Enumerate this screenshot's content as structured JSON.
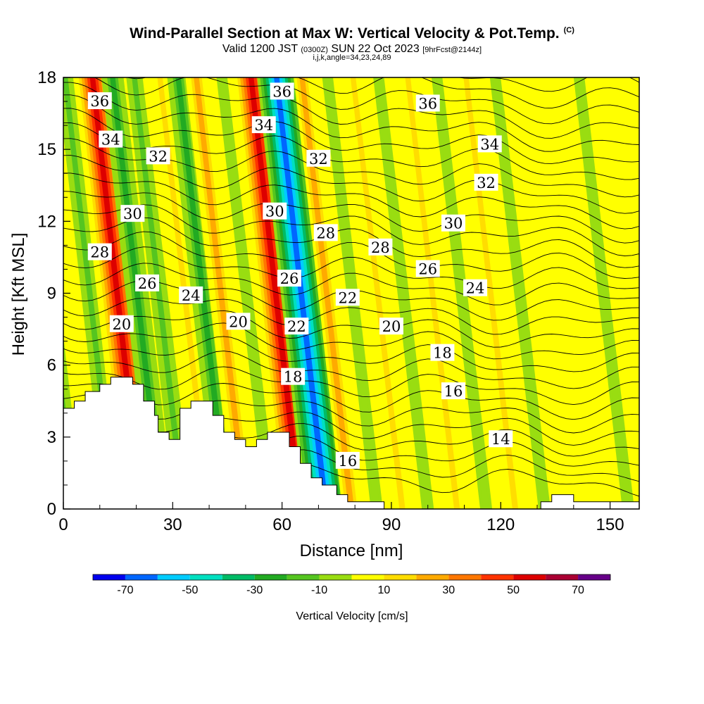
{
  "header": {
    "title": "Wind-Parallel Section at Max W: Vertical Velocity & Pot.Temp.",
    "copyright": "(C)",
    "valid_prefix": "Valid 1200 JST",
    "valid_z": "(0300Z)",
    "valid_date": "SUN 22 Oct 2023",
    "valid_fcst": "[9hrFcst@2144z]",
    "indices": "i,j,k,angle=34,23,24,89"
  },
  "chart_data": {
    "type": "heatmap",
    "title": "Wind-Parallel Section at Max W: Vertical Velocity & Pot.Temp.",
    "xlabel": "Distance [nm]",
    "ylabel": "Height [Kft MSL]",
    "xlim": [
      0,
      158
    ],
    "ylim": [
      0,
      18
    ],
    "x_ticks": [
      0,
      30,
      60,
      90,
      120,
      150
    ],
    "y_ticks": [
      0,
      3,
      6,
      9,
      12,
      15,
      18
    ],
    "colorbar": {
      "label": "Vertical Velocity [cm/s]",
      "ticks": [
        -70,
        -50,
        -30,
        -10,
        10,
        30,
        50,
        70
      ],
      "bounds": [
        -80,
        -70,
        -60,
        -50,
        -40,
        -30,
        -20,
        -10,
        0,
        10,
        20,
        30,
        40,
        50,
        60,
        70,
        80
      ],
      "colors": [
        "#0000ee",
        "#0066ff",
        "#00ccff",
        "#00e0c0",
        "#00bb66",
        "#22aa22",
        "#55c520",
        "#99dd11",
        "#ffff00",
        "#ffdd00",
        "#ffaa00",
        "#ff7700",
        "#ff3300",
        "#dd0000",
        "#aa0033",
        "#660088"
      ]
    },
    "stripes": [
      {
        "x": 3,
        "w": -20
      },
      {
        "x": 9,
        "w": 5
      },
      {
        "x": 14,
        "w": -15
      },
      {
        "x": 21.5,
        "w": 55
      },
      {
        "x": 27,
        "w": -30
      },
      {
        "x": 33,
        "w": -12
      },
      {
        "x": 40,
        "w": 10
      },
      {
        "x": 45,
        "w": -25
      },
      {
        "x": 50,
        "w": 25
      },
      {
        "x": 57,
        "w": -10
      },
      {
        "x": 65,
        "w": 55
      },
      {
        "x": 72,
        "w": -65
      },
      {
        "x": 79,
        "w": 20
      },
      {
        "x": 86,
        "w": -10
      },
      {
        "x": 93,
        "w": 15
      },
      {
        "x": 100,
        "w": -5
      },
      {
        "x": 108,
        "w": 10
      },
      {
        "x": 116,
        "w": -8
      },
      {
        "x": 124,
        "w": 12
      },
      {
        "x": 132,
        "w": -5
      },
      {
        "x": 140,
        "w": 8
      },
      {
        "x": 148,
        "w": 5
      },
      {
        "x": 155,
        "w": -8
      }
    ],
    "theta_labels": [
      {
        "v": "36",
        "x": 10,
        "y": 17.0
      },
      {
        "v": "36",
        "x": 60,
        "y": 17.4
      },
      {
        "v": "36",
        "x": 100,
        "y": 16.9
      },
      {
        "v": "34",
        "x": 13,
        "y": 15.4
      },
      {
        "v": "34",
        "x": 55,
        "y": 16.0
      },
      {
        "v": "34",
        "x": 117,
        "y": 15.2
      },
      {
        "v": "32",
        "x": 26,
        "y": 14.7
      },
      {
        "v": "32",
        "x": 70,
        "y": 14.6
      },
      {
        "v": "32",
        "x": 116,
        "y": 13.6
      },
      {
        "v": "30",
        "x": 19,
        "y": 12.3
      },
      {
        "v": "30",
        "x": 58,
        "y": 12.4
      },
      {
        "v": "30",
        "x": 107,
        "y": 11.9
      },
      {
        "v": "28",
        "x": 10,
        "y": 10.7
      },
      {
        "v": "28",
        "x": 72,
        "y": 11.5
      },
      {
        "v": "28",
        "x": 87,
        "y": 10.9
      },
      {
        "v": "26",
        "x": 23,
        "y": 9.4
      },
      {
        "v": "26",
        "x": 62,
        "y": 9.6
      },
      {
        "v": "26",
        "x": 100,
        "y": 10.0
      },
      {
        "v": "24",
        "x": 35,
        "y": 8.9
      },
      {
        "v": "24",
        "x": 113,
        "y": 9.2
      },
      {
        "v": "22",
        "x": 78,
        "y": 8.8
      },
      {
        "v": "22",
        "x": 64,
        "y": 7.6
      },
      {
        "v": "20",
        "x": 16,
        "y": 7.7
      },
      {
        "v": "20",
        "x": 48,
        "y": 7.8
      },
      {
        "v": "20",
        "x": 90,
        "y": 7.6
      },
      {
        "v": "18",
        "x": 63,
        "y": 5.5
      },
      {
        "v": "18",
        "x": 104,
        "y": 6.5
      },
      {
        "v": "16",
        "x": 78,
        "y": 2.0
      },
      {
        "v": "16",
        "x": 107,
        "y": 4.9
      },
      {
        "v": "14",
        "x": 120,
        "y": 2.9
      }
    ],
    "terrain": [
      [
        0,
        4.2
      ],
      [
        3,
        4.2
      ],
      [
        3,
        4.5
      ],
      [
        6,
        4.5
      ],
      [
        6,
        4.9
      ],
      [
        10,
        4.9
      ],
      [
        10,
        5.2
      ],
      [
        13,
        5.2
      ],
      [
        13,
        5.5
      ],
      [
        19,
        5.5
      ],
      [
        19,
        5.2
      ],
      [
        22,
        5.2
      ],
      [
        22,
        4.5
      ],
      [
        25,
        4.5
      ],
      [
        25,
        3.9
      ],
      [
        26,
        3.9
      ],
      [
        26,
        3.2
      ],
      [
        29,
        3.2
      ],
      [
        29,
        2.9
      ],
      [
        32,
        2.9
      ],
      [
        32,
        4.2
      ],
      [
        35,
        4.2
      ],
      [
        35,
        4.5
      ],
      [
        41,
        4.5
      ],
      [
        41,
        3.9
      ],
      [
        44,
        3.9
      ],
      [
        44,
        3.2
      ],
      [
        47,
        3.2
      ],
      [
        47,
        2.9
      ],
      [
        50,
        2.9
      ],
      [
        50,
        2.6
      ],
      [
        53,
        2.6
      ],
      [
        53,
        2.9
      ],
      [
        56,
        2.9
      ],
      [
        56,
        3.2
      ],
      [
        62,
        3.2
      ],
      [
        62,
        2.6
      ],
      [
        65,
        2.6
      ],
      [
        65,
        1.9
      ],
      [
        68,
        1.9
      ],
      [
        68,
        1.3
      ],
      [
        71,
        1.3
      ],
      [
        71,
        1.0
      ],
      [
        75,
        1.0
      ],
      [
        75,
        0.6
      ],
      [
        78,
        0.6
      ],
      [
        78,
        0.3
      ],
      [
        88,
        0.3
      ],
      [
        88,
        0
      ],
      [
        0,
        0
      ]
    ],
    "terrain_right": [
      [
        131,
        0
      ],
      [
        131,
        0.3
      ],
      [
        134,
        0.3
      ],
      [
        134,
        0.6
      ],
      [
        140,
        0.6
      ],
      [
        140,
        0.3
      ],
      [
        158,
        0.3
      ],
      [
        158,
        0
      ]
    ]
  },
  "colorbar_label": "Vertical Velocity [cm/s]"
}
